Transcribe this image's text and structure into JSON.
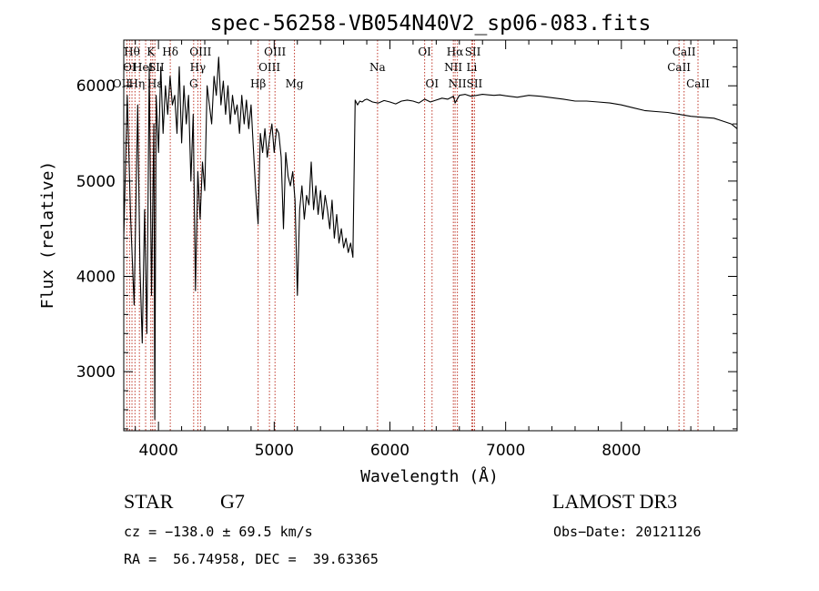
{
  "chart_data": {
    "type": "line",
    "title": "spec-56258-VB054N40V2_sp06-083.fits",
    "xlabel": "Wavelength (Å)",
    "ylabel": "Flux (relative)",
    "xlim": [
      3700,
      9000
    ],
    "ylim": [
      2380,
      6480
    ],
    "xticks": [
      4000,
      5000,
      6000,
      7000,
      8000
    ],
    "yticks": [
      3000,
      4000,
      5000,
      6000
    ],
    "x_minor_step": 200,
    "y_minor_step": 200,
    "grid": false,
    "line_color": "#000000",
    "marker_color": "#c0392b",
    "series": [
      {
        "name": "flux",
        "x": [
          3700,
          3730,
          3760,
          3790,
          3820,
          3840,
          3860,
          3880,
          3900,
          3920,
          3940,
          3960,
          3968,
          3980,
          4000,
          4020,
          4040,
          4060,
          4080,
          4100,
          4120,
          4140,
          4160,
          4180,
          4200,
          4220,
          4240,
          4260,
          4280,
          4300,
          4320,
          4340,
          4360,
          4380,
          4400,
          4420,
          4440,
          4460,
          4480,
          4500,
          4520,
          4540,
          4560,
          4580,
          4600,
          4620,
          4640,
          4660,
          4680,
          4700,
          4720,
          4740,
          4760,
          4780,
          4800,
          4820,
          4840,
          4861,
          4880,
          4900,
          4920,
          4940,
          4960,
          4980,
          5000,
          5020,
          5040,
          5060,
          5080,
          5100,
          5120,
          5140,
          5160,
          5180,
          5200,
          5220,
          5240,
          5260,
          5280,
          5300,
          5320,
          5340,
          5360,
          5380,
          5400,
          5420,
          5440,
          5460,
          5480,
          5500,
          5520,
          5540,
          5560,
          5580,
          5600,
          5620,
          5640,
          5660,
          5680,
          5700,
          5720,
          5740,
          5760,
          5780,
          5800,
          5850,
          5893,
          5900,
          5950,
          6000,
          6050,
          6100,
          6150,
          6200,
          6250,
          6300,
          6350,
          6400,
          6450,
          6500,
          6550,
          6563,
          6600,
          6650,
          6700,
          6750,
          6800,
          6850,
          6900,
          6950,
          7000,
          7100,
          7200,
          7300,
          7400,
          7500,
          7600,
          7700,
          7800,
          7900,
          8000,
          8100,
          8200,
          8300,
          8400,
          8500,
          8600,
          8700,
          8800,
          8850,
          8900,
          8950,
          9000
        ],
        "values": [
          4400,
          5900,
          4600,
          3700,
          5800,
          4100,
          3300,
          4700,
          3400,
          6200,
          3800,
          5600,
          2500,
          5900,
          5300,
          6200,
          5500,
          6000,
          5700,
          6100,
          5800,
          5900,
          5500,
          6200,
          5400,
          6000,
          5600,
          5900,
          5000,
          5700,
          3850,
          5100,
          4600,
          5200,
          4900,
          6000,
          5800,
          5600,
          6100,
          5900,
          6300,
          5800,
          6050,
          5700,
          6000,
          5600,
          5900,
          5700,
          5800,
          5500,
          5900,
          5600,
          5850,
          5550,
          5800,
          5350,
          4900,
          4550,
          5500,
          5300,
          5550,
          5250,
          5450,
          5600,
          5300,
          5550,
          5500,
          5250,
          4500,
          5300,
          5050,
          4950,
          5100,
          4800,
          3800,
          4700,
          4950,
          4600,
          4850,
          4750,
          5200,
          4700,
          4950,
          4650,
          4900,
          4600,
          4850,
          4700,
          4500,
          4800,
          4400,
          4650,
          4350,
          4500,
          4300,
          4400,
          4250,
          4350,
          4200,
          5850,
          5800,
          5840,
          5830,
          5850,
          5860,
          5830,
          5820,
          5820,
          5845,
          5830,
          5810,
          5840,
          5850,
          5840,
          5820,
          5860,
          5830,
          5850,
          5870,
          5860,
          5890,
          5820,
          5900,
          5910,
          5890,
          5900,
          5910,
          5905,
          5900,
          5905,
          5895,
          5880,
          5900,
          5890,
          5875,
          5860,
          5840,
          5840,
          5830,
          5820,
          5800,
          5770,
          5740,
          5730,
          5720,
          5700,
          5680,
          5670,
          5660,
          5640,
          5620,
          5600,
          5550
        ]
      }
    ],
    "lines": [
      {
        "w": 3727,
        "label": "OII",
        "row": 2,
        "dx": -6
      },
      {
        "w": 3750,
        "label": "OI",
        "row": 1,
        "dx": 0
      },
      {
        "w": 3771,
        "label": "Hθ",
        "row": 0,
        "dx": 0
      },
      {
        "w": 3797,
        "label": "Hη",
        "row": 2,
        "dx": 2
      },
      {
        "w": 3835,
        "label": "HeI",
        "row": 1,
        "dx": 4
      },
      {
        "w": 3889,
        "label": "",
        "row": 1,
        "dx": 0
      },
      {
        "w": 3934,
        "label": "K",
        "row": 0,
        "dx": 0
      },
      {
        "w": 3950,
        "label": "SII",
        "row": 1,
        "dx": 4
      },
      {
        "w": 3969,
        "label": "Hε",
        "row": 2,
        "dx": 0
      },
      {
        "w": 4102,
        "label": "Hδ",
        "row": 0,
        "dx": 0
      },
      {
        "w": 4304,
        "label": "G",
        "row": 2,
        "dx": 0
      },
      {
        "w": 4340,
        "label": "Hγ",
        "row": 1,
        "dx": 0
      },
      {
        "w": 4363,
        "label": "OIII",
        "row": 0,
        "dx": 0
      },
      {
        "w": 4861,
        "label": "Hβ",
        "row": 2,
        "dx": 0
      },
      {
        "w": 4959,
        "label": "OIII",
        "row": 1,
        "dx": 0
      },
      {
        "w": 5007,
        "label": "OIII",
        "row": 0,
        "dx": 0
      },
      {
        "w": 5175,
        "label": "Mg",
        "row": 2,
        "dx": 0
      },
      {
        "w": 5893,
        "label": "Na",
        "row": 1,
        "dx": 0
      },
      {
        "w": 6300,
        "label": "OI",
        "row": 0,
        "dx": 0
      },
      {
        "w": 6364,
        "label": "OI",
        "row": 2,
        "dx": 0
      },
      {
        "w": 6548,
        "label": "NII",
        "row": 1,
        "dx": 0
      },
      {
        "w": 6563,
        "label": "Hα",
        "row": 0,
        "dx": 0
      },
      {
        "w": 6583,
        "label": "NII",
        "row": 2,
        "dx": 0
      },
      {
        "w": 6707,
        "label": "Li",
        "row": 1,
        "dx": 0
      },
      {
        "w": 6716,
        "label": "SII",
        "row": 0,
        "dx": 0
      },
      {
        "w": 6731,
        "label": "SII",
        "row": 2,
        "dx": 0
      },
      {
        "w": 8498,
        "label": "CaII",
        "row": 1,
        "dx": 0
      },
      {
        "w": 8542,
        "label": "CaII",
        "row": 0,
        "dx": 0
      },
      {
        "w": 8662,
        "label": "CaII",
        "row": 2,
        "dx": 0
      }
    ]
  },
  "info": {
    "object_class": "STAR",
    "subclass": "G7",
    "survey": "LAMOST DR3",
    "redshift_text": "cz = −138.0 ± 69.5 km/s",
    "obs_date_text": "Obs−Date: 20121126",
    "coords_text": "RA =  56.74958, DEC =  39.63365"
  }
}
